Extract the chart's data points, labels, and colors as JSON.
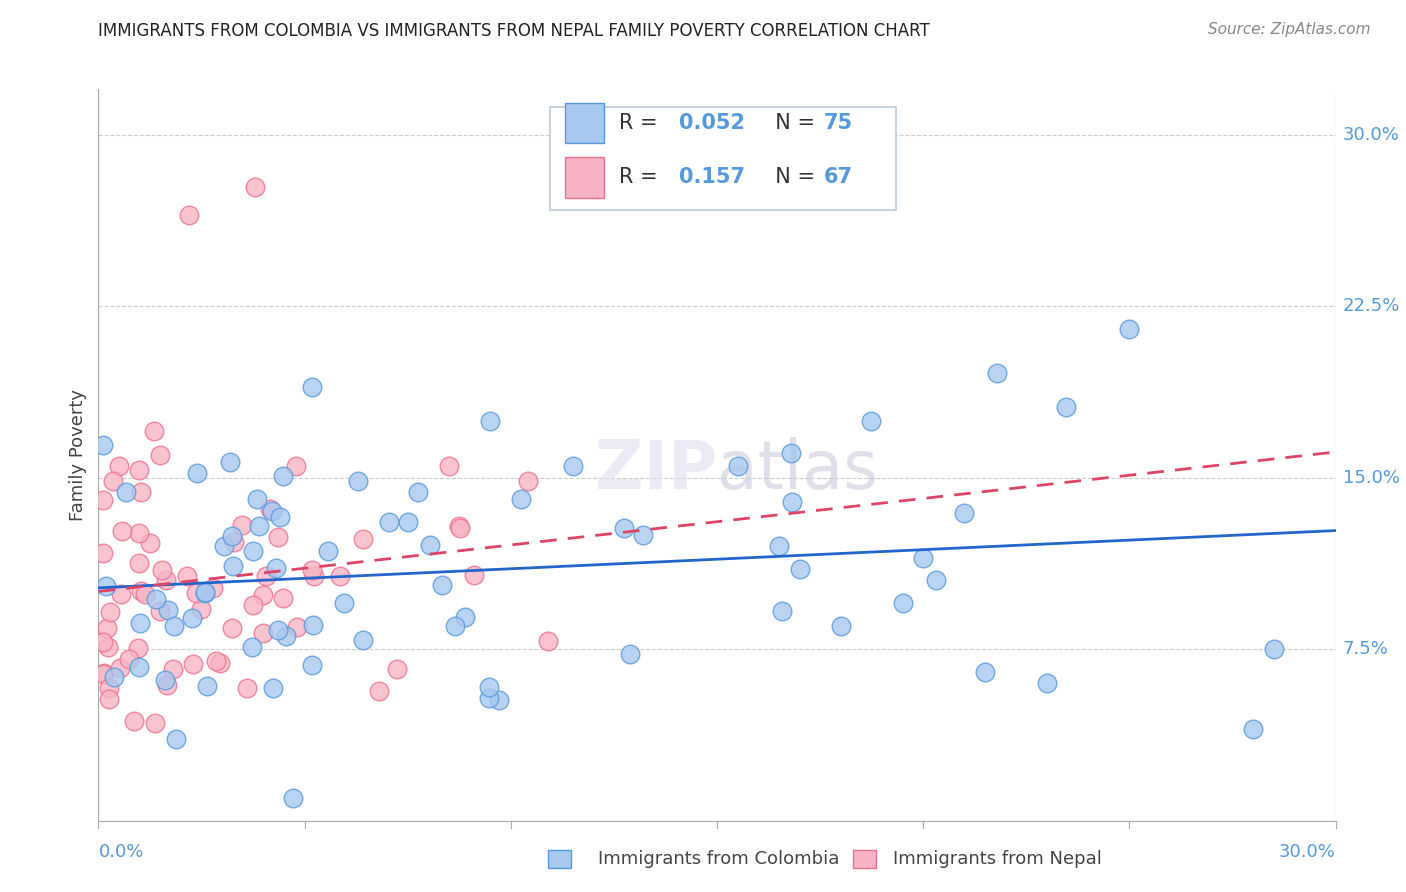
{
  "title": "IMMIGRANTS FROM COLOMBIA VS IMMIGRANTS FROM NEPAL FAMILY POVERTY CORRELATION CHART",
  "source": "Source: ZipAtlas.com",
  "ylabel": "Family Poverty",
  "ytick_labels": [
    "7.5%",
    "15.0%",
    "22.5%",
    "30.0%"
  ],
  "ytick_values": [
    0.075,
    0.15,
    0.225,
    0.3
  ],
  "xlim": [
    0.0,
    0.3
  ],
  "ylim": [
    0.0,
    0.32
  ],
  "colombia_R": 0.052,
  "colombia_N": 75,
  "nepal_R": 0.157,
  "nepal_N": 67,
  "colombia_color": "#A8C8F0",
  "nepal_color": "#F8B4C4",
  "colombia_edge": "#5599DD",
  "nepal_edge": "#EE7090",
  "trend_colombia_color": "#2266CC",
  "trend_nepal_color": "#DD4466",
  "background_color": "#FFFFFF",
  "grid_color": "#CCCCCC",
  "axis_color": "#AAAAAA",
  "tick_label_color": "#5599DD",
  "legend_edge_color": "#BBCCDD",
  "title_color": "#222222",
  "source_color": "#888888",
  "ylabel_color": "#444444",
  "bottom_legend_color": "#444444"
}
